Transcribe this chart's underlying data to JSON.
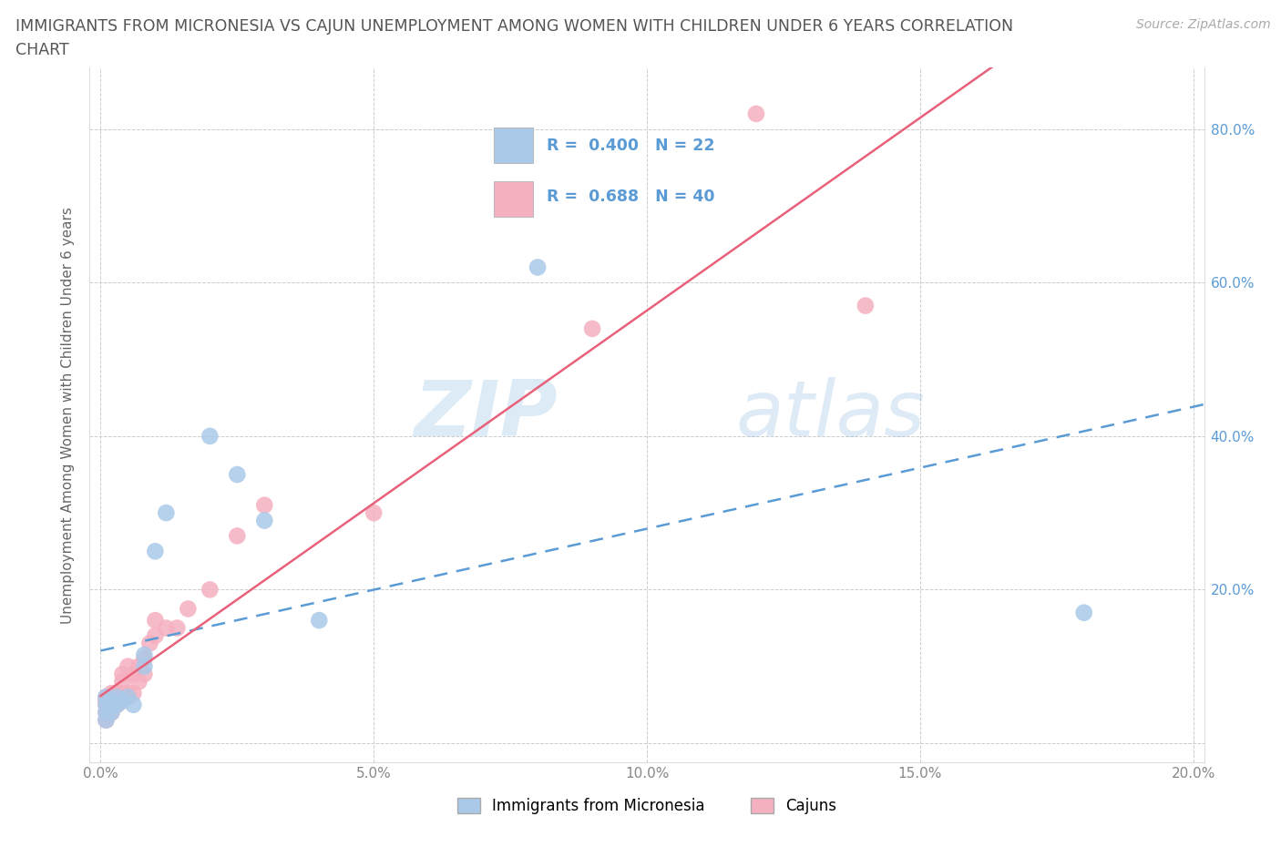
{
  "title_line1": "IMMIGRANTS FROM MICRONESIA VS CAJUN UNEMPLOYMENT AMONG WOMEN WITH CHILDREN UNDER 6 YEARS CORRELATION",
  "title_line2": "CHART",
  "source": "Source: ZipAtlas.com",
  "ylabel": "Unemployment Among Women with Children Under 6 years",
  "watermark_zip": "ZIP",
  "watermark_atlas": "atlas",
  "xlim": [
    -0.002,
    0.202
  ],
  "ylim": [
    -0.025,
    0.88
  ],
  "xticks": [
    0.0,
    0.05,
    0.1,
    0.15,
    0.2
  ],
  "yticks": [
    0.0,
    0.2,
    0.4,
    0.6,
    0.8
  ],
  "xticklabels": [
    "0.0%",
    "5.0%",
    "10.0%",
    "15.0%",
    "20.0%"
  ],
  "yticklabels_right": [
    "",
    "20.0%",
    "40.0%",
    "60.0%",
    "80.0%"
  ],
  "micronesia_color": "#aac9e8",
  "cajun_color": "#f5b0c0",
  "micronesia_line_color": "#5b9bd5",
  "cajun_line_color": "#e8607a",
  "legend_text_color": "#5b9bd5",
  "micronesia_R": "0.400",
  "micronesia_N": "22",
  "cajun_R": "0.688",
  "cajun_N": "40",
  "mic_x": [
    0.001,
    0.001,
    0.001,
    0.001,
    0.002,
    0.002,
    0.002,
    0.003,
    0.003,
    0.004,
    0.005,
    0.006,
    0.008,
    0.008,
    0.01,
    0.012,
    0.02,
    0.025,
    0.03,
    0.04,
    0.08,
    0.18
  ],
  "mic_y": [
    0.03,
    0.04,
    0.05,
    0.06,
    0.04,
    0.05,
    0.055,
    0.05,
    0.06,
    0.055,
    0.06,
    0.05,
    0.1,
    0.115,
    0.25,
    0.3,
    0.4,
    0.35,
    0.29,
    0.16,
    0.62,
    0.17
  ],
  "caj_x": [
    0.001,
    0.001,
    0.001,
    0.001,
    0.001,
    0.002,
    0.002,
    0.002,
    0.002,
    0.002,
    0.003,
    0.003,
    0.003,
    0.003,
    0.004,
    0.004,
    0.004,
    0.004,
    0.005,
    0.005,
    0.005,
    0.006,
    0.006,
    0.007,
    0.007,
    0.008,
    0.008,
    0.009,
    0.01,
    0.01,
    0.012,
    0.014,
    0.016,
    0.02,
    0.025,
    0.03,
    0.05,
    0.09,
    0.12,
    0.14
  ],
  "caj_y": [
    0.03,
    0.04,
    0.05,
    0.055,
    0.06,
    0.04,
    0.05,
    0.055,
    0.06,
    0.065,
    0.05,
    0.055,
    0.06,
    0.065,
    0.06,
    0.065,
    0.08,
    0.09,
    0.06,
    0.065,
    0.1,
    0.065,
    0.09,
    0.08,
    0.1,
    0.09,
    0.11,
    0.13,
    0.14,
    0.16,
    0.15,
    0.15,
    0.175,
    0.2,
    0.27,
    0.31,
    0.3,
    0.54,
    0.82,
    0.57
  ],
  "background_color": "#ffffff",
  "grid_color": "#cccccc",
  "tick_color": "#888888",
  "ytick_right_color": "#5b9bd5"
}
